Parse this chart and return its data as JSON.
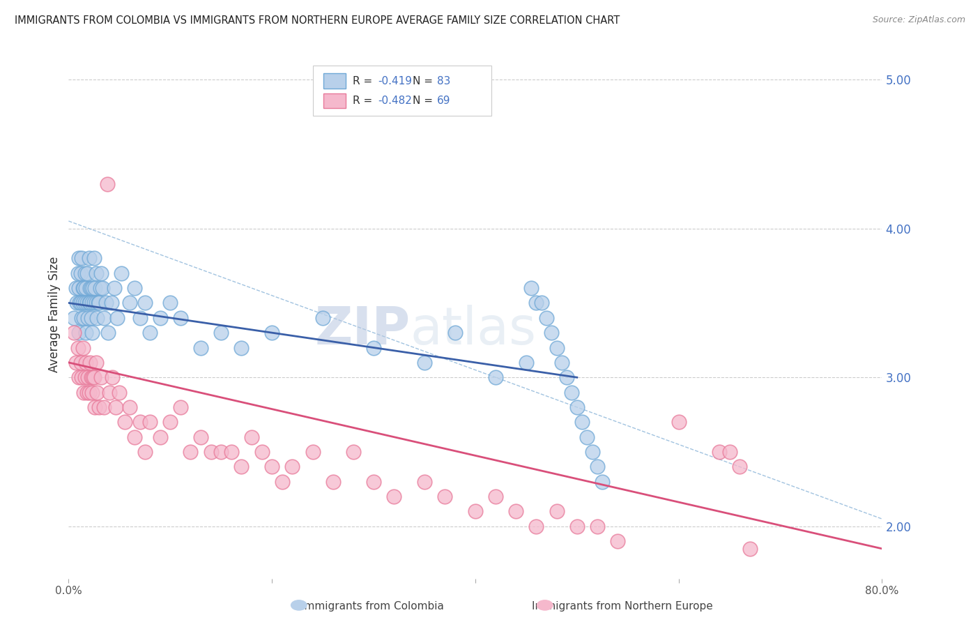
{
  "title": "IMMIGRANTS FROM COLOMBIA VS IMMIGRANTS FROM NORTHERN EUROPE AVERAGE FAMILY SIZE CORRELATION CHART",
  "source": "Source: ZipAtlas.com",
  "ylabel": "Average Family Size",
  "xlim": [
    0.0,
    0.8
  ],
  "ylim": [
    1.65,
    5.2
  ],
  "yticks": [
    2.0,
    3.0,
    4.0,
    5.0
  ],
  "xticks": [
    0.0,
    0.2,
    0.4,
    0.6,
    0.8
  ],
  "xtick_labels": [
    "0.0%",
    "",
    "",
    "",
    "80.0%"
  ],
  "ytick_labels": [
    "2.00",
    "3.00",
    "4.00",
    "5.00"
  ],
  "colombia_fill_color": "#b8d0ea",
  "colombia_edge_color": "#6fa8d6",
  "colombia_line_color": "#3a5fa8",
  "northern_europe_fill_color": "#f5b8cc",
  "northern_europe_edge_color": "#e87a9a",
  "northern_europe_line_color": "#d94f7a",
  "tick_color": "#4472c4",
  "R_colombia": -0.419,
  "N_colombia": 83,
  "R_northern_europe": -0.482,
  "N_northern_europe": 69,
  "background_color": "#ffffff",
  "grid_color": "#cccccc",
  "colombia_scatter_x": [
    0.005,
    0.007,
    0.008,
    0.009,
    0.01,
    0.01,
    0.01,
    0.011,
    0.012,
    0.012,
    0.013,
    0.013,
    0.014,
    0.014,
    0.015,
    0.015,
    0.016,
    0.016,
    0.017,
    0.017,
    0.018,
    0.018,
    0.019,
    0.02,
    0.02,
    0.021,
    0.021,
    0.022,
    0.022,
    0.023,
    0.023,
    0.024,
    0.025,
    0.025,
    0.026,
    0.027,
    0.027,
    0.028,
    0.029,
    0.03,
    0.031,
    0.032,
    0.033,
    0.035,
    0.037,
    0.039,
    0.042,
    0.045,
    0.048,
    0.052,
    0.06,
    0.065,
    0.07,
    0.075,
    0.08,
    0.09,
    0.1,
    0.11,
    0.13,
    0.15,
    0.17,
    0.2,
    0.25,
    0.3,
    0.35,
    0.38,
    0.42,
    0.45,
    0.455,
    0.46,
    0.465,
    0.47,
    0.475,
    0.48,
    0.485,
    0.49,
    0.495,
    0.5,
    0.505,
    0.51,
    0.515,
    0.52,
    0.525
  ],
  "colombia_scatter_y": [
    3.4,
    3.6,
    3.5,
    3.7,
    3.8,
    3.3,
    3.6,
    3.5,
    3.5,
    3.7,
    3.4,
    3.8,
    3.5,
    3.6,
    3.6,
    3.4,
    3.7,
    3.5,
    3.6,
    3.3,
    3.5,
    3.7,
    3.4,
    3.5,
    3.8,
    3.6,
    3.5,
    3.4,
    3.6,
    3.5,
    3.3,
    3.6,
    3.5,
    3.8,
    3.6,
    3.5,
    3.7,
    3.4,
    3.5,
    3.5,
    3.6,
    3.7,
    3.6,
    3.4,
    3.5,
    3.3,
    3.5,
    3.6,
    3.4,
    3.7,
    3.5,
    3.6,
    3.4,
    3.5,
    3.3,
    3.4,
    3.5,
    3.4,
    3.2,
    3.3,
    3.2,
    3.3,
    3.4,
    3.2,
    3.1,
    3.3,
    3.0,
    3.1,
    3.6,
    3.5,
    3.5,
    3.4,
    3.3,
    3.2,
    3.1,
    3.0,
    2.9,
    2.8,
    2.7,
    2.6,
    2.5,
    2.4,
    2.3
  ],
  "northern_europe_scatter_x": [
    0.005,
    0.007,
    0.009,
    0.01,
    0.012,
    0.013,
    0.014,
    0.015,
    0.016,
    0.017,
    0.018,
    0.019,
    0.02,
    0.021,
    0.022,
    0.023,
    0.024,
    0.025,
    0.026,
    0.027,
    0.028,
    0.03,
    0.032,
    0.035,
    0.038,
    0.04,
    0.043,
    0.046,
    0.05,
    0.055,
    0.06,
    0.065,
    0.07,
    0.075,
    0.08,
    0.09,
    0.1,
    0.11,
    0.12,
    0.13,
    0.14,
    0.15,
    0.16,
    0.17,
    0.18,
    0.19,
    0.2,
    0.21,
    0.22,
    0.24,
    0.26,
    0.28,
    0.3,
    0.32,
    0.35,
    0.37,
    0.4,
    0.42,
    0.44,
    0.46,
    0.48,
    0.5,
    0.52,
    0.54,
    0.6,
    0.64,
    0.65,
    0.66,
    0.67
  ],
  "northern_europe_scatter_y": [
    3.3,
    3.1,
    3.2,
    3.0,
    3.1,
    3.0,
    3.2,
    2.9,
    3.0,
    3.1,
    2.9,
    3.0,
    2.9,
    3.1,
    3.0,
    2.9,
    3.0,
    3.0,
    2.8,
    3.1,
    2.9,
    2.8,
    3.0,
    2.8,
    4.3,
    2.9,
    3.0,
    2.8,
    2.9,
    2.7,
    2.8,
    2.6,
    2.7,
    2.5,
    2.7,
    2.6,
    2.7,
    2.8,
    2.5,
    2.6,
    2.5,
    2.5,
    2.5,
    2.4,
    2.6,
    2.5,
    2.4,
    2.3,
    2.4,
    2.5,
    2.3,
    2.5,
    2.3,
    2.2,
    2.3,
    2.2,
    2.1,
    2.2,
    2.1,
    2.0,
    2.1,
    2.0,
    2.0,
    1.9,
    2.7,
    2.5,
    2.5,
    2.4,
    1.85
  ]
}
